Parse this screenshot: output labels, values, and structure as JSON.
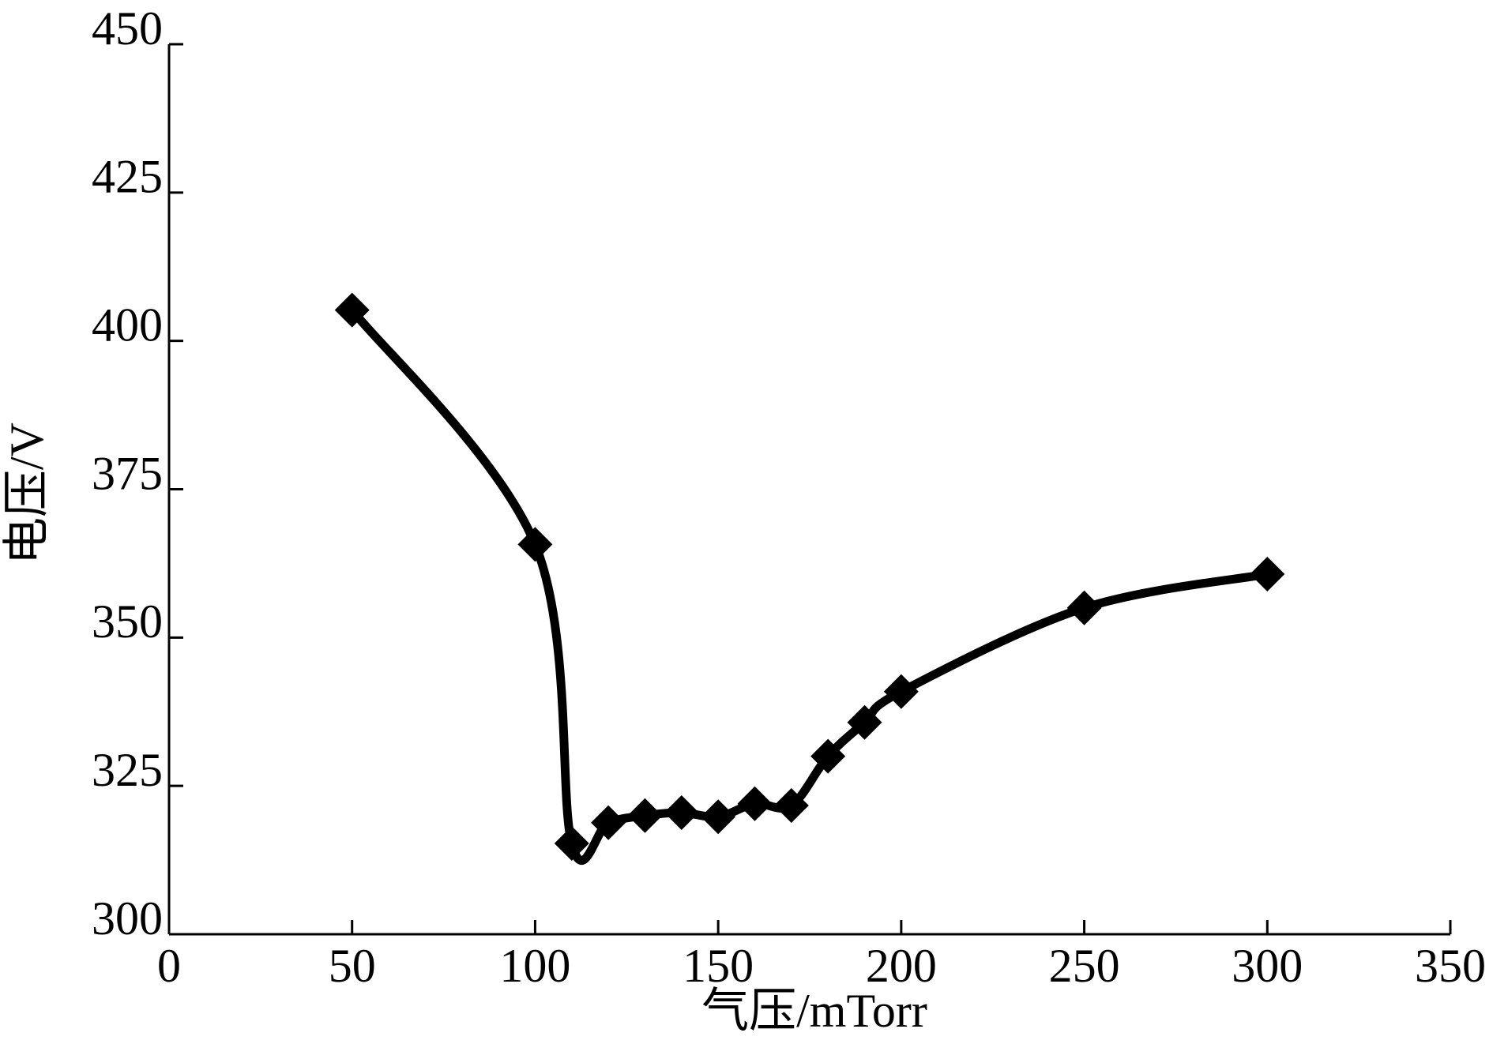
{
  "chart_data": {
    "type": "line",
    "x_label": "气压/mTorr",
    "y_label": "电压/V",
    "x": [
      50,
      100,
      110,
      120,
      130,
      140,
      150,
      160,
      170,
      180,
      190,
      200,
      250,
      300
    ],
    "series": [
      {
        "color": "#000000",
        "values": [
          405.2,
          365.7,
          315.3,
          318.8,
          320,
          320.5,
          319.8,
          322,
          321.7,
          330,
          335.7,
          340.9,
          355,
          360.7
        ]
      }
    ],
    "xlim": [
      0,
      350
    ],
    "xticks": [
      0,
      50,
      100,
      150,
      200,
      250,
      300,
      350
    ],
    "ylim": [
      300,
      450
    ],
    "yticks": [
      300,
      325,
      350,
      375,
      400,
      425,
      450
    ]
  }
}
